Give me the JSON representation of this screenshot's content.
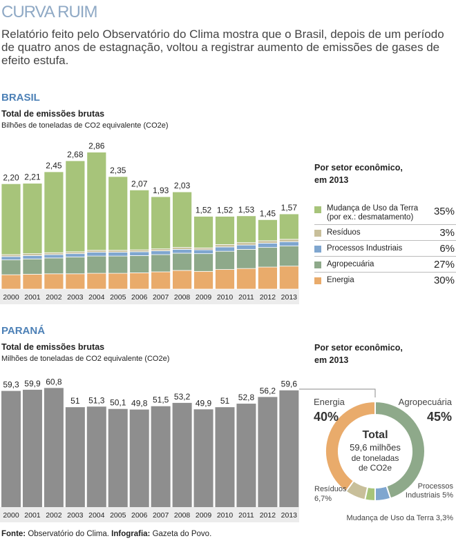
{
  "header": {
    "title": "CURVA RUIM",
    "subtitle": "Relatório feito pelo Observatório do Clima mostra que o Brasil, depois de um período de quatro anos de estagnação, voltou a registrar aumento de emissões de gases de efeito estufa."
  },
  "brasil": {
    "section": "BRASIL",
    "chart_title": "Total de emissões brutas",
    "chart_unit": "Bilhões de toneladas de CO2 equivalente (CO2e)",
    "sector_heading_1": "Por setor econômico,",
    "sector_heading_2": "em 2013",
    "legend": [
      {
        "label": "Mudança de Uso da Terra",
        "sub": "(por ex.: desmatamento)",
        "pct": "35%",
        "color": "#a7c47a"
      },
      {
        "label": "Resíduos",
        "sub": "",
        "pct": "3%",
        "color": "#c8bf9a"
      },
      {
        "label": "Processos Industriais",
        "sub": "",
        "pct": "6%",
        "color": "#7fa6cf"
      },
      {
        "label": "Agropecuária",
        "sub": "",
        "pct": "27%",
        "color": "#8ea98a"
      },
      {
        "label": "Energia",
        "sub": "",
        "pct": "30%",
        "color": "#e9ab6b"
      }
    ]
  },
  "parana": {
    "section": "PARANÁ",
    "chart_title": "Total de emissões brutas",
    "chart_unit": "Milhões de toneladas de CO2 equivalente (CO2e)",
    "sector_heading_1": "Por setor econômico,",
    "sector_heading_2": "em 2013",
    "donut": {
      "center_1": "Total",
      "center_2": "59,6 milhões",
      "center_3": "de toneladas",
      "center_4": "de CO2e",
      "labels": [
        {
          "name": "Energia",
          "pct": "40%"
        },
        {
          "name": "Agropecuária",
          "pct": "45%"
        },
        {
          "name": "Processos",
          "name2": "Industriais 5%"
        },
        {
          "name": "Mudança de Uso da Terra 3,3%"
        },
        {
          "name": "Resíduos",
          "pct": "6,7%"
        }
      ]
    }
  },
  "footer": {
    "source_label": "Fonte:",
    "source_text": "Observatório do Clima.",
    "infographic_label": "Infografia:",
    "infographic_text": "Gazeta do Povo."
  },
  "chart_data": [
    {
      "type": "bar",
      "stacked": true,
      "title": "Total de emissões brutas",
      "ylabel": "Bilhões de toneladas de CO2 equivalente (CO2e)",
      "categories": [
        "2000",
        "2001",
        "2002",
        "2003",
        "2004",
        "2005",
        "2006",
        "2007",
        "2008",
        "2009",
        "2010",
        "2011",
        "2012",
        "2013"
      ],
      "totals": [
        "2,20",
        "2,21",
        "2,45",
        "2,68",
        "2,86",
        "2,35",
        "2,07",
        "1,93",
        "2,03",
        "1,52",
        "1,52",
        "1,53",
        "1,45",
        "1,57"
      ],
      "total_values": [
        2.2,
        2.21,
        2.45,
        2.68,
        2.86,
        2.35,
        2.07,
        1.93,
        2.03,
        1.52,
        1.52,
        1.53,
        1.45,
        1.57
      ],
      "series": [
        {
          "name": "Energia",
          "values": [
            0.3,
            0.31,
            0.32,
            0.32,
            0.33,
            0.33,
            0.34,
            0.36,
            0.39,
            0.37,
            0.41,
            0.43,
            0.46,
            0.48
          ],
          "color": "#e9ab6b"
        },
        {
          "name": "Agropecuária",
          "values": [
            0.31,
            0.32,
            0.33,
            0.35,
            0.36,
            0.36,
            0.36,
            0.36,
            0.36,
            0.37,
            0.38,
            0.4,
            0.41,
            0.42
          ],
          "color": "#8ea98a"
        },
        {
          "name": "Processos Industriais",
          "values": [
            0.07,
            0.07,
            0.07,
            0.07,
            0.08,
            0.08,
            0.08,
            0.08,
            0.08,
            0.08,
            0.09,
            0.09,
            0.09,
            0.09
          ],
          "color": "#7fa6cf"
        },
        {
          "name": "Resíduos",
          "values": [
            0.04,
            0.04,
            0.04,
            0.04,
            0.04,
            0.04,
            0.04,
            0.04,
            0.04,
            0.04,
            0.05,
            0.05,
            0.05,
            0.05
          ],
          "color": "#c8bf9a"
        },
        {
          "name": "Mudança de Uso da Terra",
          "values": [
            1.48,
            1.47,
            1.69,
            1.9,
            2.05,
            1.54,
            1.25,
            1.09,
            1.16,
            0.66,
            0.59,
            0.56,
            0.44,
            0.53
          ],
          "color": "#a7c47a"
        }
      ],
      "ylim": [
        0,
        3
      ]
    },
    {
      "type": "bar",
      "title": "Total de emissões brutas",
      "ylabel": "Milhões de toneladas de CO2 equivalente (CO2e)",
      "categories": [
        "2000",
        "2001",
        "2002",
        "2003",
        "2004",
        "2005",
        "2006",
        "2007",
        "2008",
        "2009",
        "2010",
        "2011",
        "2012",
        "2013"
      ],
      "labels": [
        "59,3",
        "59,9",
        "60,8",
        "51",
        "51,3",
        "50,1",
        "49,8",
        "51,5",
        "53,2",
        "49,9",
        "51",
        "52,8",
        "56,2",
        "59,6"
      ],
      "values": [
        59.3,
        59.9,
        60.8,
        51,
        51.3,
        50.1,
        49.8,
        51.5,
        53.2,
        49.9,
        51,
        52.8,
        56.2,
        59.6
      ],
      "color": "#8e8e8e",
      "ylim": [
        0,
        61
      ]
    },
    {
      "type": "pie",
      "title": "Por setor econômico, em 2013",
      "labels": [
        "Agropecuária",
        "Processos Industriais",
        "Mudança de Uso da Terra",
        "Resíduos",
        "Energia"
      ],
      "values": [
        45,
        5,
        3.3,
        6.7,
        40
      ],
      "colors": [
        "#8ea98a",
        "#7fa6cf",
        "#a7c47a",
        "#c8bf9a",
        "#e9ab6b"
      ]
    }
  ]
}
